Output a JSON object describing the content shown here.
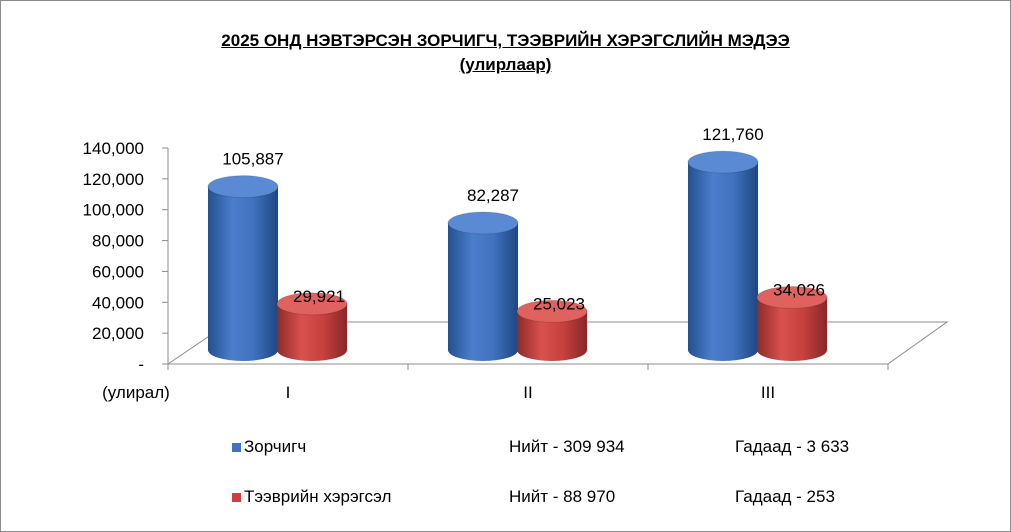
{
  "chart_data": {
    "type": "bar",
    "title": "2025 ОНД НЭВТЭРСЭН ЗОРЧИГЧ, ТЭЭВРИЙН ХЭРЭГСЛИЙН МЭДЭЭ",
    "subtitle": "(улирлаар)",
    "xlabel": "(улирал)",
    "categories": [
      "I",
      "II",
      "III"
    ],
    "series": [
      {
        "name": "Зорчигч",
        "values": [
          105887,
          82287,
          121760
        ],
        "labels": [
          "105,887",
          "82,287",
          "121,760"
        ],
        "color": "#3f72bf"
      },
      {
        "name": "Тээврийн хэрэгсэл",
        "values": [
          29921,
          25023,
          34026
        ],
        "labels": [
          "29,921",
          "25,023",
          "34,026"
        ],
        "color": "#c8413e"
      }
    ],
    "ylim": [
      0,
      140000
    ],
    "yticks": [
      "-",
      "20,000",
      "40,000",
      "60,000",
      "80,000",
      "100,000",
      "120,000",
      "140,000"
    ],
    "grid": false,
    "legend_position": "bottom"
  },
  "legend": [
    {
      "label": "Зорчигч",
      "total": "Нийт - 309 934",
      "foreign": "Гадаад - 3 633",
      "color": "#3f72bf"
    },
    {
      "label": "Тээврийн хэрэгсэл",
      "total": "Нийт - 88 970",
      "foreign": "Гадаад - 253",
      "color": "#c8413e"
    }
  ]
}
